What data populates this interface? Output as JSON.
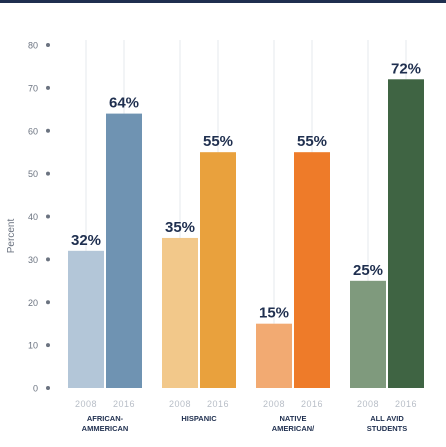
{
  "chart_data": {
    "type": "bar",
    "ylabel": "Percent",
    "ylim": [
      0,
      80
    ],
    "yticks": [
      0,
      10,
      20,
      30,
      40,
      50,
      60,
      70,
      80
    ],
    "grid": false,
    "groups": [
      {
        "label_lines": [
          "AFRICAN-",
          "AMMERICAN"
        ],
        "bars": [
          {
            "year": "2008",
            "value": 32,
            "label": "32%",
            "color": "#b3c6d8"
          },
          {
            "year": "2016",
            "value": 64,
            "label": "64%",
            "color": "#6f93b2"
          }
        ]
      },
      {
        "label_lines": [
          "HISPANIC"
        ],
        "bars": [
          {
            "year": "2008",
            "value": 35,
            "label": "35%",
            "color": "#f2c88a"
          },
          {
            "year": "2016",
            "value": 55,
            "label": "55%",
            "color": "#e9a13d"
          }
        ]
      },
      {
        "label_lines": [
          "NATIVE",
          "AMERICAN/"
        ],
        "bars": [
          {
            "year": "2008",
            "value": 15,
            "label": "15%",
            "color": "#f2aa72"
          },
          {
            "year": "2016",
            "value": 55,
            "label": "55%",
            "color": "#ee7b29"
          }
        ]
      },
      {
        "label_lines": [
          "ALL AVID",
          "STUDENTS"
        ],
        "bars": [
          {
            "year": "2008",
            "value": 25,
            "label": "25%",
            "color": "#7f9a7d"
          },
          {
            "year": "2016",
            "value": 72,
            "label": "72%",
            "color": "#3f6443"
          }
        ]
      }
    ]
  },
  "colors": {
    "axis_text": "#6b7380",
    "value_text": "#1f2f4f",
    "category_text": "#1f2f4f",
    "year_text": "#b8bec7",
    "guide_line": "#e6e9ee",
    "top_rule": "#1f2f4f"
  }
}
